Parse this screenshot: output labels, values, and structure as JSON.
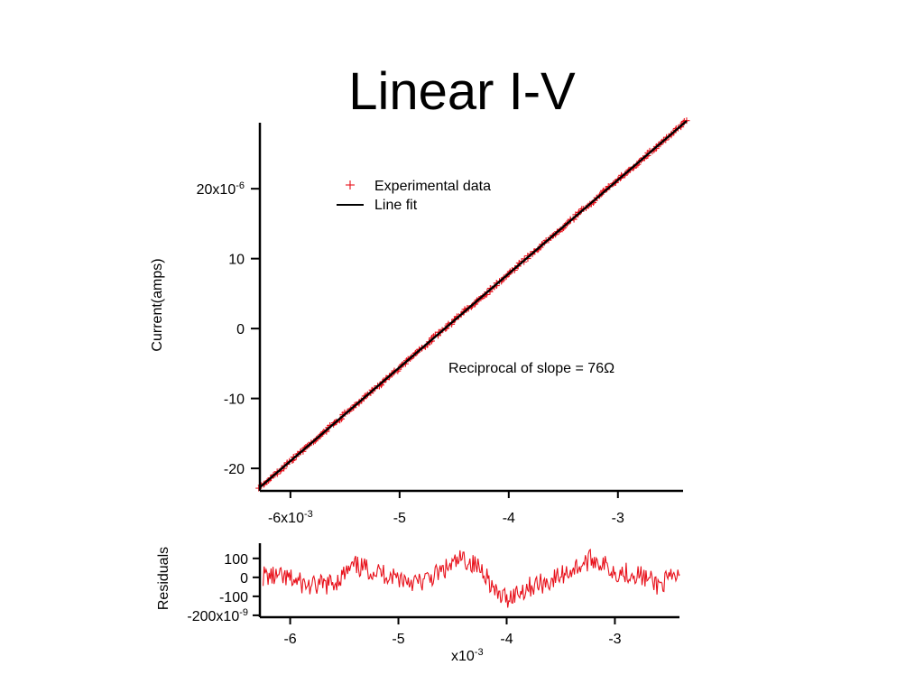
{
  "slide": {
    "title": "Linear I-V"
  },
  "chart_data": [
    {
      "type": "scatter",
      "title": "",
      "xlabel": "",
      "ylabel": "Current(amps)",
      "xlim": [
        -0.00628,
        -0.00237
      ],
      "ylim": [
        -2.27e-05,
        2.97e-05
      ],
      "x_ticks": [
        -0.006,
        -0.005,
        -0.004,
        -0.003
      ],
      "x_tick_labels": [
        "-6x10-3",
        "-5",
        "-4",
        "-3"
      ],
      "x_tick_label_parts": [
        {
          "base": "-6x10",
          "sup": "-3"
        },
        {
          "base": "-5"
        },
        {
          "base": "-4"
        },
        {
          "base": "-3"
        }
      ],
      "y_ticks": [
        2e-05,
        1e-05,
        0,
        -1e-05,
        -2e-05
      ],
      "y_tick_labels": [
        "20x10-6",
        "10",
        "0",
        "-10",
        "-20"
      ],
      "y_tick_label_parts": [
        {
          "base": "20x10",
          "sup": "-6"
        },
        {
          "base": "10"
        },
        {
          "base": "0"
        },
        {
          "base": "-10"
        },
        {
          "base": "-20"
        }
      ],
      "grid": false,
      "legend_position": "top-left",
      "series": [
        {
          "name": "Experimental data",
          "kind": "scatter",
          "marker": "+",
          "color": "#e8101a",
          "x_range": [
            -0.00628,
            -0.00237
          ],
          "y_range": [
            -2.27e-05,
            2.97e-05
          ]
        },
        {
          "name": "Line fit",
          "kind": "line",
          "color": "#000000",
          "x": [
            -0.00628,
            -0.00237
          ],
          "y": [
            -2.27e-05,
            2.97e-05
          ]
        }
      ],
      "annotations": [
        {
          "text": "Reciprocal of slope = 76Ω"
        }
      ]
    },
    {
      "type": "line",
      "title": "",
      "xlabel": "x10-3",
      "xlabel_parts": {
        "base": "x10",
        "sup": "-3"
      },
      "ylabel": "Residuals",
      "xlim": [
        -0.00628,
        -0.00237
      ],
      "ylim": [
        -2.1e-07,
        1.8e-07
      ],
      "x_ticks": [
        -0.006,
        -0.005,
        -0.004,
        -0.003
      ],
      "x_tick_labels": [
        "-6",
        "-5",
        "-4",
        "-3"
      ],
      "y_ticks": [
        1e-07,
        0,
        -1e-07,
        -2e-07
      ],
      "y_tick_labels": [
        "100",
        "0",
        "-100",
        "-200x10-9"
      ],
      "y_tick_label_parts": [
        {
          "base": "100"
        },
        {
          "base": "0"
        },
        {
          "base": "-100"
        },
        {
          "base": "-200x10",
          "sup": "-9"
        }
      ],
      "grid": false,
      "series": [
        {
          "name": "",
          "kind": "line",
          "color": "#e8101a",
          "x": [
            -0.00625,
            -0.006,
            -0.0058,
            -0.0056,
            -0.0054,
            -0.0052,
            -0.005,
            -0.0048,
            -0.0046,
            -0.0044,
            -0.0042,
            -0.0041,
            -0.004,
            -0.0038,
            -0.0036,
            -0.0034,
            -0.0032,
            -0.003,
            -0.0028,
            -0.0026,
            -0.0024
          ],
          "y": [
            1e-08,
            -1e-08,
            -5e-08,
            -3e-08,
            6e-08,
            3e-08,
            0,
            -3e-08,
            3e-08,
            1e-07,
            3e-08,
            -9e-08,
            -1.1e-07,
            -5e-08,
            -2e-08,
            4e-08,
            1e-07,
            3e-08,
            2e-08,
            -4e-08,
            1e-08
          ]
        }
      ]
    }
  ]
}
